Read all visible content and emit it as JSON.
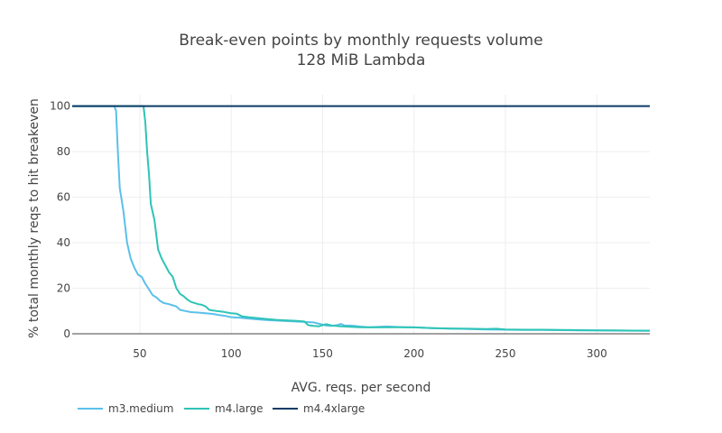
{
  "chart_data": {
    "type": "line",
    "title": "Break-even points by monthly requests volume",
    "subtitle": "128 MiB Lambda",
    "xlabel": "AVG. reqs. per second",
    "ylabel": "% total monthly reqs to hit breakeven",
    "xlim": [
      13,
      329
    ],
    "ylim": [
      0,
      105
    ],
    "xticks": [
      50,
      100,
      150,
      200,
      250,
      300
    ],
    "yticks": [
      0,
      20,
      40,
      60,
      80,
      100
    ],
    "grid": true,
    "legend_position": "bottom-left",
    "series": [
      {
        "name": "m3.medium",
        "color": "#5bc0eb",
        "points": [
          [
            13,
            100
          ],
          [
            36,
            100
          ],
          [
            37,
            98
          ],
          [
            38,
            80
          ],
          [
            39,
            64
          ],
          [
            41,
            54
          ],
          [
            43,
            40
          ],
          [
            45,
            33
          ],
          [
            47,
            29
          ],
          [
            49,
            26
          ],
          [
            51,
            25
          ],
          [
            53,
            22
          ],
          [
            55,
            19.5
          ],
          [
            57,
            17
          ],
          [
            59,
            16
          ],
          [
            61,
            14.5
          ],
          [
            63,
            13.5
          ],
          [
            66,
            13
          ],
          [
            68,
            12.5
          ],
          [
            70,
            12
          ],
          [
            72,
            10.5
          ],
          [
            75,
            10
          ],
          [
            78,
            9.5
          ],
          [
            82,
            9.3
          ],
          [
            86,
            9
          ],
          [
            90,
            8.7
          ],
          [
            93,
            8.3
          ],
          [
            97,
            7.8
          ],
          [
            100,
            7.3
          ],
          [
            105,
            7
          ],
          [
            110,
            6.6
          ],
          [
            115,
            6.3
          ],
          [
            120,
            6
          ],
          [
            125,
            5.8
          ],
          [
            130,
            5.6
          ],
          [
            135,
            5.4
          ],
          [
            140,
            5.2
          ],
          [
            145,
            5
          ],
          [
            148,
            4.4
          ],
          [
            150,
            4
          ],
          [
            152,
            3.6
          ],
          [
            155,
            3.5
          ],
          [
            158,
            3.8
          ],
          [
            160,
            4.3
          ],
          [
            162,
            3.6
          ],
          [
            165,
            3.6
          ],
          [
            168,
            3.4
          ],
          [
            170,
            3.2
          ],
          [
            175,
            2.9
          ],
          [
            180,
            3
          ],
          [
            185,
            3.2
          ],
          [
            190,
            3
          ],
          [
            195,
            2.9
          ],
          [
            200,
            2.8
          ],
          [
            210,
            2.5
          ],
          [
            220,
            2.3
          ],
          [
            230,
            2.1
          ],
          [
            240,
            1.9
          ],
          [
            250,
            1.8
          ],
          [
            260,
            1.7
          ],
          [
            270,
            1.65
          ],
          [
            280,
            1.6
          ],
          [
            290,
            1.5
          ],
          [
            300,
            1.45
          ],
          [
            310,
            1.4
          ],
          [
            320,
            1.35
          ],
          [
            329,
            1.3
          ]
        ]
      },
      {
        "name": "m4.large",
        "color": "#2ec4b6",
        "points": [
          [
            13,
            100
          ],
          [
            52,
            100
          ],
          [
            53,
            93
          ],
          [
            54,
            80
          ],
          [
            55,
            70
          ],
          [
            56,
            57
          ],
          [
            58,
            50
          ],
          [
            60,
            37
          ],
          [
            62,
            33
          ],
          [
            64,
            30
          ],
          [
            66,
            27
          ],
          [
            68,
            25
          ],
          [
            70,
            20
          ],
          [
            72,
            17.5
          ],
          [
            74,
            16.5
          ],
          [
            76,
            15
          ],
          [
            78,
            14
          ],
          [
            80,
            13.5
          ],
          [
            82,
            13
          ],
          [
            84,
            12.7
          ],
          [
            86,
            12
          ],
          [
            88,
            10.5
          ],
          [
            92,
            10
          ],
          [
            96,
            9.6
          ],
          [
            100,
            9
          ],
          [
            103,
            8.8
          ],
          [
            106,
            7.6
          ],
          [
            110,
            7.2
          ],
          [
            115,
            6.8
          ],
          [
            120,
            6.4
          ],
          [
            125,
            6.1
          ],
          [
            130,
            5.9
          ],
          [
            135,
            5.7
          ],
          [
            140,
            5.4
          ],
          [
            142,
            3.8
          ],
          [
            145,
            3.5
          ],
          [
            148,
            3.3
          ],
          [
            150,
            3.8
          ],
          [
            152,
            4.2
          ],
          [
            155,
            3.6
          ],
          [
            160,
            3.3
          ],
          [
            165,
            3.1
          ],
          [
            170,
            2.9
          ],
          [
            175,
            2.8
          ],
          [
            180,
            2.8
          ],
          [
            190,
            2.9
          ],
          [
            200,
            2.8
          ],
          [
            210,
            2.5
          ],
          [
            220,
            2.3
          ],
          [
            230,
            2.2
          ],
          [
            240,
            2.1
          ],
          [
            245,
            2.2
          ],
          [
            250,
            1.9
          ],
          [
            260,
            1.8
          ],
          [
            270,
            1.8
          ],
          [
            280,
            1.7
          ],
          [
            290,
            1.6
          ],
          [
            300,
            1.5
          ],
          [
            310,
            1.5
          ],
          [
            320,
            1.4
          ],
          [
            329,
            1.4
          ]
        ]
      },
      {
        "name": "m4.4xlarge",
        "color": "#0d3b66",
        "points": [
          [
            13,
            100
          ],
          [
            329,
            100
          ]
        ]
      }
    ]
  }
}
